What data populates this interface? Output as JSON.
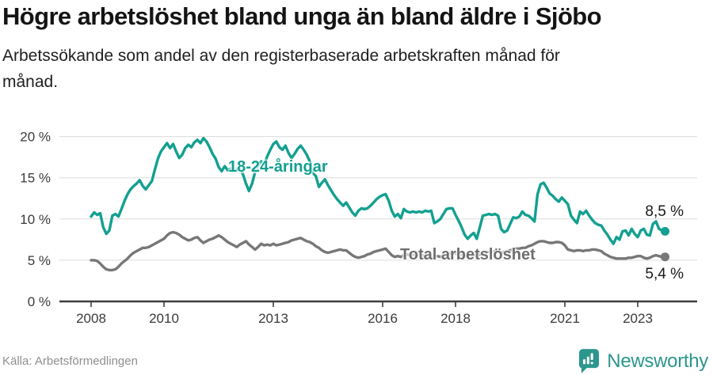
{
  "header": {
    "title": "Högre arbetslöshet bland unga än bland äldre i Sjöbo",
    "subtitle": "Arbetssökande som andel av den registerbaserade arbetskraften månad för\nmånad."
  },
  "footer": {
    "source": "Källa: Arbetsförmedlingen",
    "brand": "Newsworthy",
    "logo_icon": "bar-chart-speech-bubble"
  },
  "colors": {
    "youth": "#12a090",
    "total": "#777777",
    "total_label": "#6e6e6e",
    "grid": "#dcdcdc",
    "axis": "#3d3d3d",
    "tick_text": "#3a3a3a",
    "value_text": "#1a1a1a",
    "brand": "#2d968c"
  },
  "chart_data": {
    "type": "line",
    "x_unit": "month",
    "start": "2008-01",
    "end": "2023-10",
    "ylim": [
      0,
      21.3
    ],
    "grid": true,
    "x_ticks": [
      2008,
      2010,
      2013,
      2016,
      2018,
      2021,
      2023
    ],
    "y_ticks": [
      {
        "value": 0,
        "label": "0 %"
      },
      {
        "value": 5,
        "label": "5 %"
      },
      {
        "value": 10,
        "label": "10 %"
      },
      {
        "value": 15,
        "label": "15 %"
      },
      {
        "value": 20,
        "label": "20 %"
      }
    ],
    "series": [
      {
        "key": "youth",
        "name": "18-24-åringar",
        "color": "#12a090",
        "end_label": "8,5 %",
        "end_value": 8.5,
        "values": [
          10.3,
          10.8,
          10.5,
          10.7,
          9.0,
          8.2,
          8.6,
          10.4,
          10.6,
          10.3,
          11.2,
          12.2,
          13.0,
          13.6,
          14.0,
          14.3,
          14.7,
          14.0,
          13.6,
          14.1,
          14.6,
          16.0,
          17.3,
          18.2,
          18.7,
          19.2,
          18.6,
          19.1,
          18.2,
          17.4,
          17.8,
          18.6,
          19.0,
          18.7,
          19.3,
          19.6,
          19.2,
          19.8,
          19.4,
          18.7,
          17.9,
          17.3,
          16.3,
          15.8,
          16.4,
          15.9,
          16.1,
          15.8,
          15.9,
          16.2,
          15.4,
          14.3,
          13.4,
          14.3,
          15.7,
          16.5,
          17.0,
          16.6,
          17.6,
          18.4,
          19.1,
          19.4,
          18.7,
          18.4,
          18.9,
          18.0,
          17.4,
          17.9,
          18.5,
          18.9,
          18.4,
          17.8,
          17.0,
          15.6,
          15.2,
          13.9,
          14.4,
          14.8,
          14.1,
          13.5,
          12.9,
          12.4,
          12.0,
          11.6,
          12.0,
          11.4,
          10.8,
          10.4,
          11.0,
          11.3,
          11.2,
          11.3,
          11.6,
          12.0,
          12.4,
          12.7,
          12.9,
          13.0,
          12.2,
          11.0,
          10.3,
          10.6,
          10.1,
          11.2,
          10.9,
          10.8,
          10.9,
          10.8,
          10.9,
          10.8,
          11.0,
          10.9,
          11.0,
          9.5,
          9.7,
          10.0,
          10.6,
          11.2,
          11.3,
          11.3,
          10.5,
          9.8,
          9.0,
          8.1,
          7.6,
          8.0,
          8.3,
          7.6,
          9.0,
          10.4,
          10.5,
          10.6,
          10.5,
          10.6,
          10.4,
          8.8,
          8.4,
          8.6,
          9.4,
          10.2,
          10.1,
          10.3,
          10.9,
          10.5,
          10.4,
          10.1,
          9.7,
          13.0,
          14.2,
          14.4,
          13.8,
          13.1,
          12.8,
          12.4,
          12.1,
          12.6,
          12.2,
          11.8,
          10.4,
          9.9,
          9.5,
          10.9,
          10.6,
          11.0,
          10.4,
          9.9,
          9.5,
          9.3,
          9.2,
          8.6,
          8.1,
          7.5,
          7.0,
          7.8,
          7.5,
          8.5,
          8.6,
          8.0,
          8.8,
          8.2,
          7.8,
          8.6,
          8.8,
          8.1,
          8.0,
          9.4,
          9.7,
          8.8,
          8.6,
          8.5
        ]
      },
      {
        "key": "total",
        "name": "Total arbetslöshet",
        "color": "#777777",
        "end_label": "5,4 %",
        "end_value": 5.4,
        "values": [
          5.0,
          5.0,
          4.9,
          4.6,
          4.2,
          3.9,
          3.8,
          3.8,
          3.9,
          4.2,
          4.6,
          4.9,
          5.2,
          5.6,
          5.9,
          6.1,
          6.3,
          6.5,
          6.5,
          6.6,
          6.8,
          7.0,
          7.2,
          7.4,
          7.6,
          8.0,
          8.3,
          8.4,
          8.3,
          8.1,
          7.8,
          7.6,
          7.4,
          7.5,
          7.7,
          7.8,
          7.4,
          7.1,
          7.3,
          7.5,
          7.6,
          7.8,
          8.0,
          7.8,
          7.5,
          7.2,
          7.0,
          6.8,
          6.6,
          6.9,
          7.1,
          7.3,
          6.9,
          6.6,
          6.3,
          6.6,
          7.0,
          6.8,
          6.9,
          6.8,
          7.0,
          6.8,
          6.9,
          7.0,
          7.1,
          7.2,
          7.4,
          7.5,
          7.6,
          7.7,
          7.5,
          7.3,
          7.2,
          7.0,
          6.7,
          6.5,
          6.2,
          6.0,
          5.9,
          6.0,
          6.1,
          6.2,
          6.3,
          6.2,
          6.2,
          5.9,
          5.6,
          5.4,
          5.3,
          5.4,
          5.5,
          5.7,
          5.8,
          6.0,
          6.1,
          6.2,
          6.3,
          6.4,
          6.0,
          5.6,
          5.4,
          5.5,
          5.4,
          5.6,
          5.7,
          5.6,
          5.7,
          5.6,
          5.7,
          5.6,
          5.5,
          5.4,
          5.3,
          5.4,
          5.5,
          5.4,
          5.6,
          5.7,
          5.8,
          5.8,
          5.8,
          5.7,
          5.6,
          5.5,
          5.4,
          5.5,
          5.6,
          5.5,
          5.7,
          5.8,
          5.9,
          6.0,
          6.0,
          6.1,
          6.0,
          5.9,
          6.0,
          6.1,
          6.2,
          6.3,
          6.4,
          6.4,
          6.5,
          6.5,
          6.7,
          6.8,
          7.0,
          7.2,
          7.3,
          7.3,
          7.2,
          7.1,
          7.1,
          7.2,
          7.2,
          7.1,
          6.8,
          6.3,
          6.2,
          6.1,
          6.2,
          6.2,
          6.1,
          6.2,
          6.2,
          6.3,
          6.3,
          6.2,
          6.1,
          5.8,
          5.6,
          5.4,
          5.3,
          5.2,
          5.2,
          5.2,
          5.2,
          5.3,
          5.3,
          5.4,
          5.5,
          5.5,
          5.3,
          5.2,
          5.3,
          5.5,
          5.6,
          5.5,
          5.4,
          5.4
        ]
      }
    ]
  }
}
